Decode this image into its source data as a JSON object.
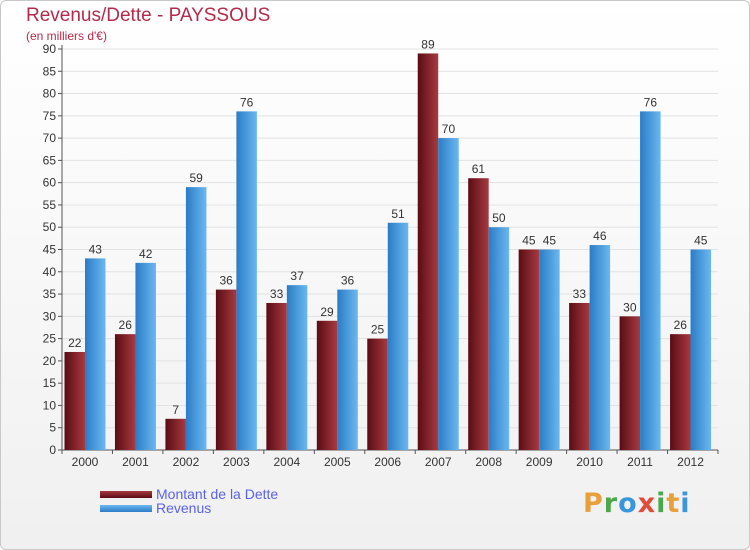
{
  "chart_data": {
    "type": "bar",
    "title": "Revenus/Dette - PAYSSOUS",
    "subtitle": "(en milliers d'€)",
    "xlabel": "",
    "ylabel": "",
    "ylim": [
      0,
      90
    ],
    "yticks": [
      0,
      5,
      10,
      15,
      20,
      25,
      30,
      35,
      40,
      45,
      50,
      55,
      60,
      65,
      70,
      75,
      80,
      85,
      90
    ],
    "grid": true,
    "categories": [
      "2000",
      "2001",
      "2002",
      "2003",
      "2004",
      "2005",
      "2006",
      "2007",
      "2008",
      "2009",
      "2010",
      "2011",
      "2012"
    ],
    "series": [
      {
        "name": "Montant de la Dette",
        "color": "#7a1b22",
        "values": [
          22,
          26,
          7,
          36,
          33,
          29,
          25,
          89,
          61,
          45,
          33,
          30,
          26
        ]
      },
      {
        "name": "Revenus",
        "color": "#3a96dc",
        "values": [
          43,
          42,
          59,
          76,
          37,
          36,
          51,
          70,
          50,
          45,
          46,
          76,
          45
        ]
      }
    ],
    "legend": "bottom-left"
  },
  "logo": {
    "letters": [
      "P",
      "r",
      "o",
      "x",
      "i",
      "t",
      "i"
    ],
    "colors": [
      "#e8a03a",
      "#4aa84a",
      "#3a96dc",
      "#e24a3a",
      "#4aa84a",
      "#e8a03a",
      "#3a96dc"
    ]
  }
}
